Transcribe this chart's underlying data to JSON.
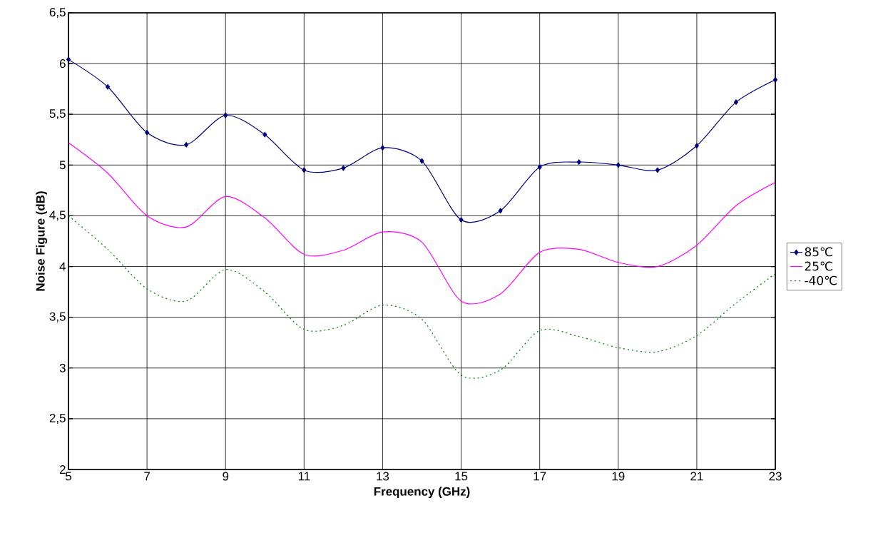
{
  "chart_data": {
    "type": "line",
    "xlabel": "Frequency (GHz)",
    "ylabel": "Noise Figure (dB)",
    "x": [
      5,
      6,
      7,
      8,
      9,
      10,
      11,
      12,
      13,
      14,
      15,
      16,
      17,
      18,
      19,
      20,
      21,
      22,
      23
    ],
    "series": [
      {
        "name": "85℃",
        "color": "#000080",
        "marker": "diamond",
        "line_style": "solid",
        "values": [
          6.04,
          5.77,
          5.32,
          5.2,
          5.49,
          5.3,
          4.95,
          4.97,
          5.17,
          5.04,
          4.46,
          4.55,
          4.98,
          5.03,
          5.0,
          4.95,
          5.19,
          5.62,
          5.84
        ]
      },
      {
        "name": "25℃",
        "color": "#ff00ff",
        "marker": "none",
        "line_style": "solid",
        "values": [
          5.22,
          4.92,
          4.5,
          4.39,
          4.69,
          4.48,
          4.12,
          4.16,
          4.34,
          4.24,
          3.66,
          3.73,
          4.14,
          4.17,
          4.04,
          4.0,
          4.21,
          4.6,
          4.83
        ]
      },
      {
        "name": "-40℃",
        "color": "#008000",
        "marker": "none",
        "line_style": "dotted",
        "values": [
          4.5,
          4.17,
          3.78,
          3.66,
          3.97,
          3.75,
          3.38,
          3.42,
          3.62,
          3.48,
          2.93,
          2.98,
          3.37,
          3.31,
          3.2,
          3.16,
          3.32,
          3.64,
          3.93
        ]
      }
    ],
    "xlim": [
      5,
      23
    ],
    "xticks": [
      5,
      7,
      9,
      11,
      13,
      15,
      17,
      19,
      21,
      23
    ],
    "ylim": [
      2,
      6.5
    ],
    "yticks": [
      2,
      {
        "value": 2.5,
        "label": "2,5"
      },
      3,
      {
        "value": 3.5,
        "label": "3,5"
      },
      4,
      {
        "value": 4.5,
        "label": "4,5"
      },
      5,
      {
        "value": 5.5,
        "label": "5,5"
      },
      6,
      {
        "value": 6.5,
        "label": "6,5"
      }
    ],
    "grid": true,
    "legend": "right"
  }
}
